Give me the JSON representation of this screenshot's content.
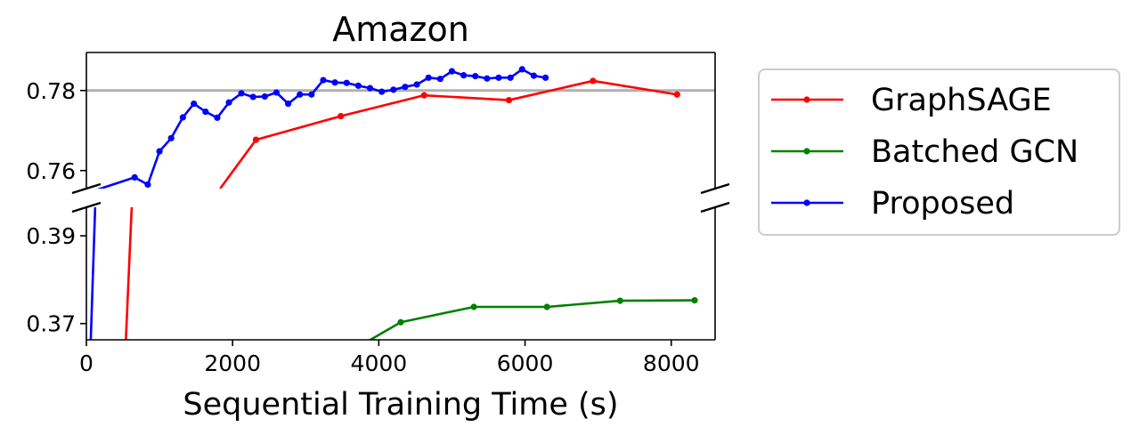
{
  "chart_data": {
    "type": "line",
    "title": "Amazon",
    "xlabel": "Sequential Training Time (s)",
    "ylabel": "",
    "xlim": [
      0,
      8600
    ],
    "x_ticks": [
      0,
      2000,
      4000,
      6000,
      8000
    ],
    "x_tick_labels": [
      "0",
      "2000",
      "4000",
      "6000",
      "8000"
    ],
    "broken_y_axis": true,
    "upper_panel": {
      "ylim": [
        0.7555,
        0.7895
      ],
      "y_ticks": [
        0.76,
        0.78
      ],
      "y_tick_labels": [
        "0.76",
        "0.78"
      ],
      "reference_line": 0.78
    },
    "lower_panel": {
      "ylim": [
        0.3663,
        0.3965
      ],
      "y_ticks": [
        0.37,
        0.39
      ],
      "y_tick_labels": [
        "0.37",
        "0.39"
      ]
    },
    "legend_position": "right",
    "series": [
      {
        "name": "GraphSAGE",
        "color": "#ff0000",
        "enters_from_lower": true,
        "points": [
          [
            2320,
            0.7677
          ],
          [
            3480,
            0.7736
          ],
          [
            4620,
            0.7788
          ],
          [
            5780,
            0.7776
          ],
          [
            6930,
            0.7824
          ],
          [
            8080,
            0.779
          ]
        ]
      },
      {
        "name": "Batched GCN",
        "color": "#008000",
        "points": [
          [
            4300,
            0.3703
          ],
          [
            5300,
            0.3738
          ],
          [
            6300,
            0.3738
          ],
          [
            7300,
            0.3752
          ],
          [
            8320,
            0.3753
          ]
        ]
      },
      {
        "name": "Proposed",
        "color": "#0000ff",
        "enters_from_lower": true,
        "points": [
          [
            660,
            0.7583
          ],
          [
            840,
            0.7565
          ],
          [
            1000,
            0.7648
          ],
          [
            1160,
            0.7681
          ],
          [
            1320,
            0.7733
          ],
          [
            1470,
            0.7767
          ],
          [
            1630,
            0.7747
          ],
          [
            1790,
            0.7732
          ],
          [
            1950,
            0.777
          ],
          [
            2120,
            0.7793
          ],
          [
            2280,
            0.7784
          ],
          [
            2440,
            0.7785
          ],
          [
            2600,
            0.7795
          ],
          [
            2760,
            0.7767
          ],
          [
            2920,
            0.779
          ],
          [
            3080,
            0.779
          ],
          [
            3240,
            0.7826
          ],
          [
            3400,
            0.782
          ],
          [
            3560,
            0.7819
          ],
          [
            3720,
            0.7812
          ],
          [
            3880,
            0.7806
          ],
          [
            4040,
            0.7797
          ],
          [
            4200,
            0.7802
          ],
          [
            4360,
            0.7809
          ],
          [
            4520,
            0.7815
          ],
          [
            4680,
            0.7832
          ],
          [
            4840,
            0.7829
          ],
          [
            5000,
            0.7848
          ],
          [
            5160,
            0.7838
          ],
          [
            5320,
            0.7836
          ],
          [
            5480,
            0.783
          ],
          [
            5640,
            0.7832
          ],
          [
            5800,
            0.7832
          ],
          [
            5960,
            0.7853
          ],
          [
            6120,
            0.7837
          ],
          [
            6280,
            0.7832
          ]
        ]
      }
    ]
  }
}
